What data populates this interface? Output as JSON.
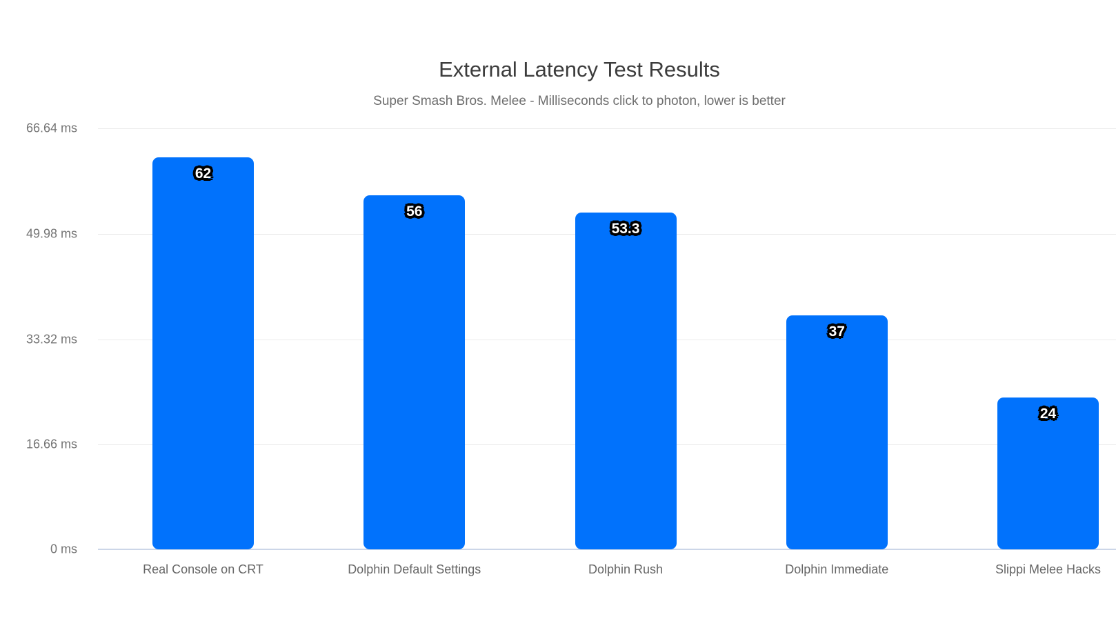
{
  "chart_data": {
    "type": "bar",
    "title": "External Latency Test Results",
    "subtitle": "Super Smash Bros. Melee - Milliseconds click to photon, lower is better",
    "categories": [
      "Real Console on CRT",
      "Dolphin Default Settings",
      "Dolphin Rush",
      "Dolphin Immediate",
      "Slippi Melee Hacks"
    ],
    "values": [
      62,
      56,
      53.3,
      37,
      24
    ],
    "value_labels": [
      "62",
      "56",
      "53.3",
      "37",
      "24"
    ],
    "ytick_labels": [
      "66.64 ms",
      "49.98 ms",
      "33.32 ms",
      "16.66 ms",
      "0 ms"
    ],
    "yticks": [
      66.64,
      49.98,
      33.32,
      16.66,
      0
    ],
    "ylim": [
      0,
      66.64
    ],
    "xlabel": "",
    "ylabel": "milliseconds",
    "grid": true,
    "legend_position": "none",
    "bar_color": "#0172fc",
    "value_label_style": "bold white text with black outline inside top of bar"
  }
}
